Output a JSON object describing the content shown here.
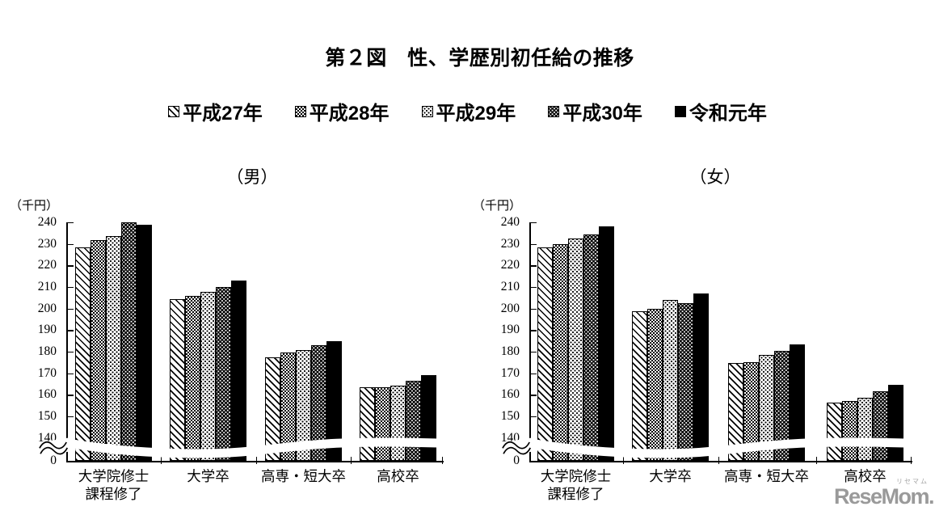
{
  "page": {
    "title": "第２図　性、学歴別初任給の推移"
  },
  "legend": {
    "items": [
      {
        "label": "平成27年",
        "pattern": "diagonal-hatch"
      },
      {
        "label": "平成28年",
        "pattern": "checkerboard"
      },
      {
        "label": "平成29年",
        "pattern": "light-dots"
      },
      {
        "label": "平成30年",
        "pattern": "dark-diamond-dots"
      },
      {
        "label": "令和元年",
        "pattern": "solid-black"
      }
    ]
  },
  "colors": {
    "foreground": "#000000",
    "background": "#ffffff",
    "watermark_gray": "#9a9a9a"
  },
  "watermark": {
    "text": "ReseMom.",
    "ruby": "リセマム"
  },
  "chart_data": [
    {
      "type": "bar",
      "title": "（男）",
      "unit_label": "（千円）",
      "categories": [
        "大学院修士課程修了",
        "大学卒",
        "高専・短大卒",
        "高校卒"
      ],
      "category_display": [
        "大学院修士\n課程修了",
        "大学卒",
        "高専・短大卒",
        "高校卒"
      ],
      "series": [
        {
          "name": "平成27年",
          "values": [
            228.5,
            204.5,
            177.5,
            163.4
          ]
        },
        {
          "name": "平成28年",
          "values": [
            231.7,
            205.9,
            179.7,
            163.5
          ]
        },
        {
          "name": "平成29年",
          "values": [
            233.6,
            207.8,
            180.6,
            164.2
          ]
        },
        {
          "name": "平成30年",
          "values": [
            239.9,
            210.1,
            182.9,
            166.6
          ]
        },
        {
          "name": "令和元年",
          "values": [
            239.0,
            212.8,
            184.7,
            168.9
          ]
        }
      ],
      "yticks": [
        240,
        230,
        220,
        210,
        200,
        190,
        180,
        170,
        160,
        150,
        140
      ],
      "baseline_label": "0",
      "ylim": [
        0,
        240
      ],
      "axis_break": {
        "present": true,
        "hidden_range": [
          0,
          140
        ]
      },
      "grid": false,
      "legend_position": "top-shared"
    },
    {
      "type": "bar",
      "title": "（女）",
      "unit_label": "（千円）",
      "categories": [
        "大学院修士課程修了",
        "大学卒",
        "高専・短大卒",
        "高校卒"
      ],
      "category_display": [
        "大学院修士\n課程修了",
        "大学卒",
        "高専・短大卒",
        "高校卒"
      ],
      "series": [
        {
          "name": "平成27年",
          "values": [
            228.5,
            198.8,
            174.6,
            156.2
          ]
        },
        {
          "name": "平成28年",
          "values": [
            229.7,
            200.0,
            175.2,
            157.2
          ]
        },
        {
          "name": "平成29年",
          "values": [
            232.6,
            204.1,
            178.4,
            158.4
          ]
        },
        {
          "name": "平成30年",
          "values": [
            234.4,
            202.6,
            180.4,
            161.4
          ]
        },
        {
          "name": "令和元年",
          "values": [
            238.3,
            206.9,
            183.4,
            164.6
          ]
        }
      ],
      "yticks": [
        240,
        230,
        220,
        210,
        200,
        190,
        180,
        170,
        160,
        150,
        140
      ],
      "baseline_label": "0",
      "ylim": [
        0,
        240
      ],
      "axis_break": {
        "present": true,
        "hidden_range": [
          0,
          140
        ]
      },
      "grid": false,
      "legend_position": "top-shared"
    }
  ]
}
